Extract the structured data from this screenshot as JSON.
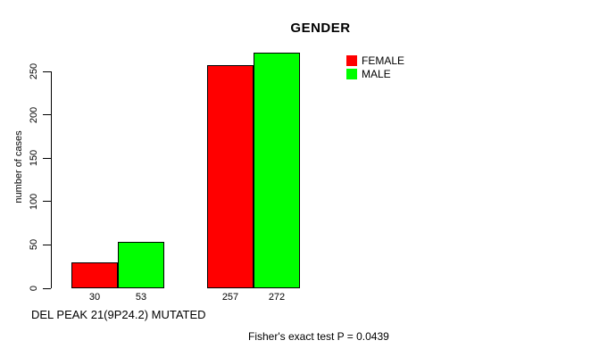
{
  "chart_data": {
    "type": "bar",
    "title": "GENDER",
    "ylabel": "number of cases",
    "categories": [
      "DEL PEAK 21(9P24.2) MUTATED",
      ""
    ],
    "series": [
      {
        "name": "FEMALE",
        "color": "#ff0000",
        "values": [
          30,
          257
        ]
      },
      {
        "name": "MALE",
        "color": "#00ff00",
        "values": [
          53,
          272
        ]
      }
    ],
    "bar_value_labels": [
      "30",
      "53",
      "257",
      "272"
    ],
    "yticks": [
      0,
      50,
      100,
      150,
      200,
      250
    ],
    "ylim": [
      0,
      250
    ],
    "grid": false,
    "legend_position": "top-right",
    "annotation": "Fisher's exact test P = 0.0439",
    "axis_color": "#000000",
    "background": "#ffffff"
  }
}
